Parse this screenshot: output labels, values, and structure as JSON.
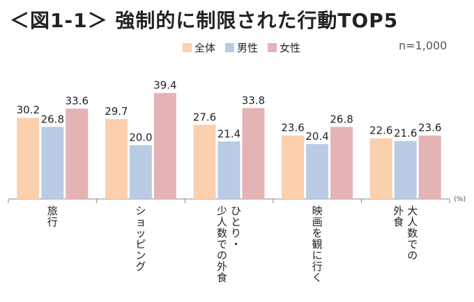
{
  "title": "＜図1-1＞ 強制的に制限された行動TOP5",
  "note": "n=1,000",
  "unit_label": "(%)",
  "colors": {
    "zentai": "#fbd0ae",
    "dansei": "#b9cce4",
    "josei": "#e3b3b5"
  },
  "chart_data": {
    "type": "bar",
    "title": "＜図1-1＞ 強制的に制限された行動TOP5",
    "ylabel": "(%)",
    "ylim": [
      0,
      45
    ],
    "grid": false,
    "legend_position": "top-center",
    "categories": [
      [
        "旅行"
      ],
      [
        "ショッピング"
      ],
      [
        "ひとり・",
        "少人数での外食"
      ],
      [
        "映画を観に行く"
      ],
      [
        "大人数での",
        "外食"
      ]
    ],
    "series": [
      {
        "name": "全体",
        "color": "#fbd0ae",
        "values": [
          30.2,
          29.7,
          27.6,
          23.6,
          22.6
        ],
        "labels": [
          "30.2",
          "29.7",
          "27.6",
          "23.6",
          "22.6"
        ]
      },
      {
        "name": "男性",
        "color": "#b9cce4",
        "values": [
          26.8,
          20.0,
          21.4,
          20.4,
          21.6
        ],
        "labels": [
          "26.8",
          "20.0",
          "21.4",
          "20.4",
          "21.6"
        ]
      },
      {
        "name": "女性",
        "color": "#e3b3b5",
        "values": [
          33.6,
          39.4,
          33.8,
          26.8,
          23.6
        ],
        "labels": [
          "33.6",
          "39.4",
          "33.8",
          "26.8",
          "23.6"
        ]
      }
    ]
  }
}
